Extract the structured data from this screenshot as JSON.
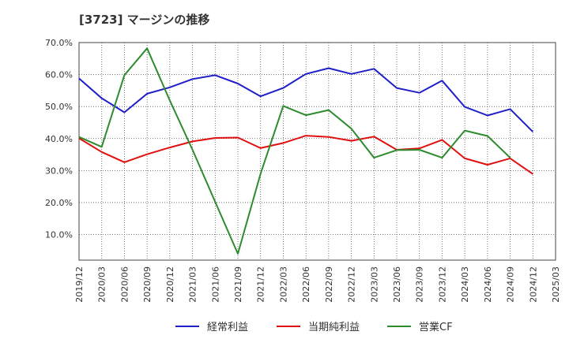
{
  "chart_data": {
    "type": "line",
    "title": "[3723]  マージンの推移",
    "categories": [
      "2019/12",
      "2020/03",
      "2020/06",
      "2020/09",
      "2020/12",
      "2021/03",
      "2021/06",
      "2021/09",
      "2021/12",
      "2022/03",
      "2022/06",
      "2022/09",
      "2022/12",
      "2023/03",
      "2023/06",
      "2023/09",
      "2023/12",
      "2024/03",
      "2024/06",
      "2024/09",
      "2024/12",
      "2025/03"
    ],
    "y_ticks": [
      "10.0%",
      "20.0%",
      "30.0%",
      "40.0%",
      "50.0%",
      "60.0%",
      "70.0%"
    ],
    "ylim": [
      2.0,
      70.0
    ],
    "grid": true,
    "legend_position": "bottom",
    "series": [
      {
        "name": "経常利益",
        "color": "#1f1fc8",
        "values": [
          58.8,
          52.6,
          48.2,
          54.0,
          56.0,
          58.6,
          59.8,
          57.2,
          53.2,
          55.8,
          60.2,
          62.0,
          60.2,
          61.8,
          55.8,
          54.3,
          58.1,
          49.9,
          47.2,
          49.2,
          42.1,
          null
        ]
      },
      {
        "name": "当期純利益",
        "color": "#e01010",
        "values": [
          40.1,
          35.8,
          32.6,
          35.1,
          37.2,
          39.1,
          40.2,
          40.3,
          37.0,
          38.6,
          40.9,
          40.5,
          39.3,
          40.6,
          36.5,
          36.9,
          39.6,
          33.8,
          31.8,
          33.8,
          28.9,
          null
        ]
      },
      {
        "name": "営業CF",
        "color": "#2e8b2e",
        "values": [
          40.5,
          37.4,
          59.8,
          68.2,
          51.9,
          36.5,
          20.2,
          4.0,
          29.0,
          50.2,
          47.3,
          48.9,
          43.1,
          34.0,
          36.4,
          36.5,
          34.0,
          42.5,
          40.8,
          34.0,
          null,
          null
        ]
      }
    ]
  }
}
